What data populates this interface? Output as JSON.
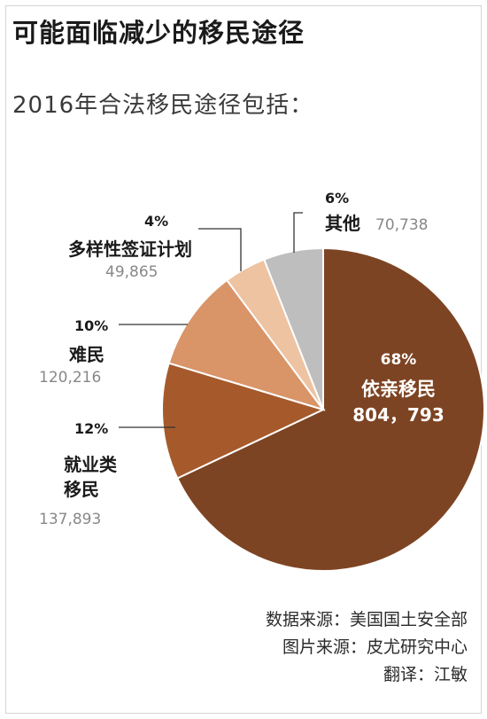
{
  "title": "可能面临减少的移民途径",
  "subtitle": "2016年合法移民途径包括：",
  "chart_data": {
    "type": "pie",
    "slices": [
      {
        "pct": "68%",
        "name": "依亲移民",
        "value": "804，793",
        "number": 804793,
        "color": "#7d4423"
      },
      {
        "pct": "12%",
        "name": "就业类移民",
        "name_lines": [
          "就业类",
          "移民"
        ],
        "value": "137,893",
        "number": 137893,
        "color": "#a65a2b"
      },
      {
        "pct": "10%",
        "name": "难民",
        "value": "120,216",
        "number": 120216,
        "color": "#d99468"
      },
      {
        "pct": "4%",
        "name": "多样性签证计划",
        "value": "49,865",
        "number": 49865,
        "color": "#eec3a2"
      },
      {
        "pct": "6%",
        "name": "其他",
        "value": "70,738",
        "number": 70738,
        "color": "#bebebe"
      }
    ]
  },
  "source": {
    "data": "数据来源：美国国土安全部",
    "image": "图片来源：皮尤研究中心",
    "translator": "翻译：江敏"
  }
}
